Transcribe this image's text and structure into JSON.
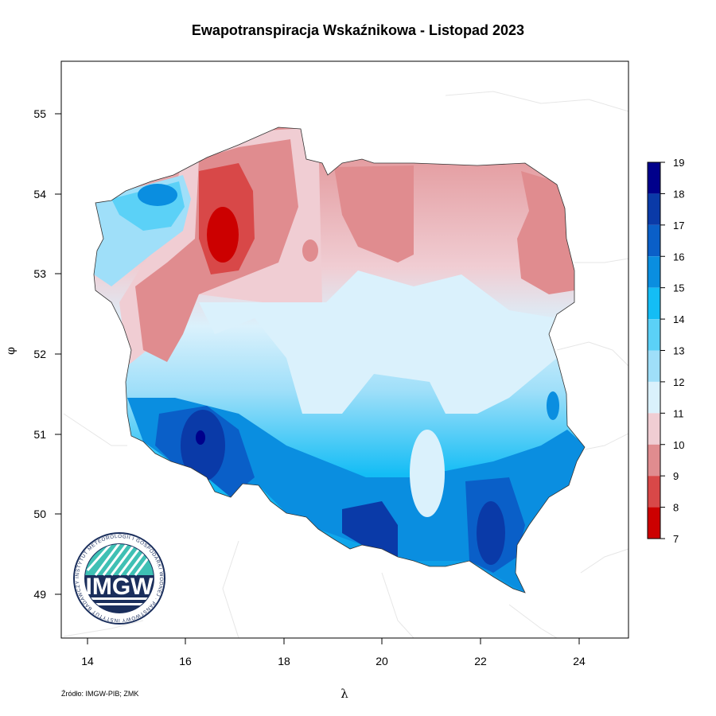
{
  "title": "Ewapotranspiracja Wskaźnikowa - Listopad 2023",
  "source": "Źródło: IMGW-PIB; ZMK",
  "axes": {
    "x_label": "λ",
    "y_label": "φ",
    "x_ticks": [
      "14",
      "16",
      "18",
      "20",
      "22",
      "24"
    ],
    "y_ticks": [
      "55",
      "54",
      "53",
      "52",
      "51",
      "50",
      "49"
    ]
  },
  "legend": {
    "levels": [
      "19",
      "18",
      "17",
      "16",
      "15",
      "14",
      "13",
      "12",
      "11",
      "10",
      "9",
      "8",
      "7"
    ],
    "colors": [
      "#00008b",
      "#0a3aa8",
      "#0a5fc8",
      "#0a8ee0",
      "#14bdf5",
      "#5bd1f7",
      "#9fdff9",
      "#daf1fc",
      "#f0cdd3",
      "#e08c8f",
      "#d84848",
      "#cc0000"
    ]
  },
  "logo": {
    "text": "IMGW",
    "ring_text": "INSTYTUT METEOROLOGII I GOSPODARKI WODNEJ · PAŃSTWOWY INSTYTUT BADAWCZY"
  }
}
